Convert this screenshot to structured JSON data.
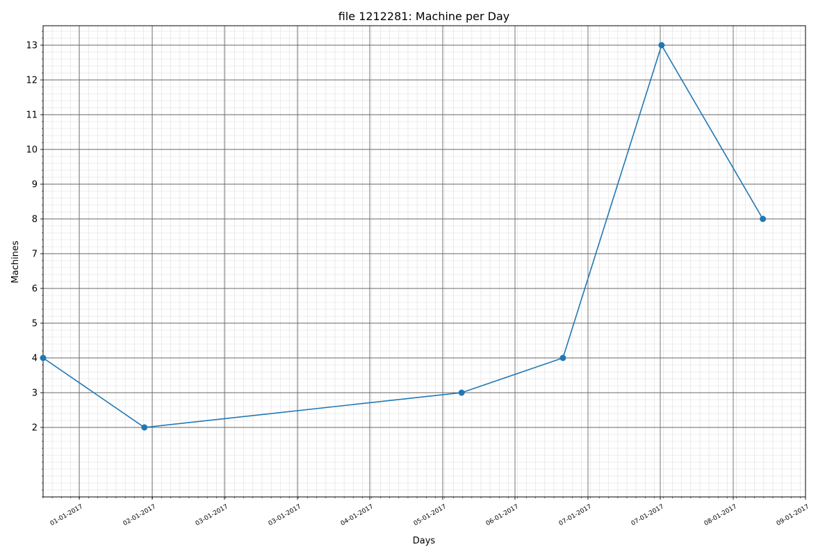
{
  "chart_data": {
    "type": "line",
    "title": "file 1212281: Machine per Day",
    "xlabel": "Days",
    "ylabel": "Machines",
    "x_tick_labels": [
      "01-01-2017",
      "02-01-2017",
      "03-01-2017",
      "03-01-2017",
      "04-01-2017",
      "05-01-2017",
      "06-01-2017",
      "07-01-2017",
      "07-01-2017",
      "08-01-2017",
      "09-01-2017"
    ],
    "y_ticks": [
      2,
      3,
      4,
      5,
      6,
      7,
      8,
      9,
      10,
      11,
      12,
      13
    ],
    "ylim": [
      0,
      13.56
    ],
    "series": [
      {
        "color": "#1f77b4",
        "marker": "circle",
        "x": [
          "2016-12-16",
          "2017-01-23",
          "2017-05-22",
          "2017-06-29",
          "2017-08-05",
          "2017-09-12"
        ],
        "y": [
          4,
          2,
          3,
          4,
          13,
          8
        ]
      }
    ],
    "grid": {
      "major": true,
      "minor": true
    },
    "colors": {
      "major_grid": "#666666",
      "minor_grid": "#dddddd",
      "line": "#1f77b4"
    }
  }
}
